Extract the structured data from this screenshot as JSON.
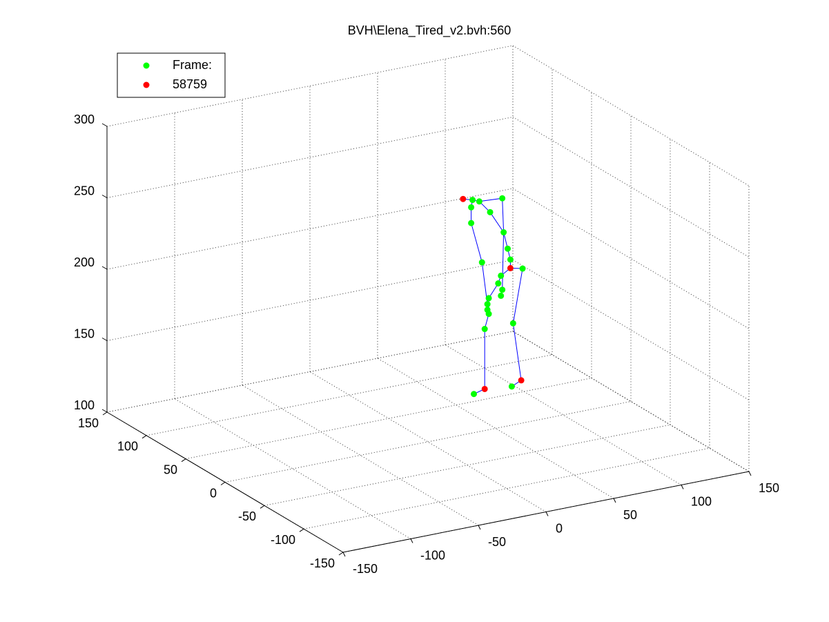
{
  "chart_data": {
    "type": "scatter3d",
    "title": "BVH\\Elena_Tired_v2.bvh:560",
    "xlim": [
      -150,
      150
    ],
    "ylim": [
      -150,
      150
    ],
    "zlim": [
      100,
      300
    ],
    "xticks": [
      -150,
      -100,
      -50,
      0,
      50,
      100,
      150
    ],
    "yticks": [
      -150,
      -100,
      -50,
      0,
      50,
      100,
      150
    ],
    "zticks": [
      100,
      150,
      200,
      250,
      300
    ],
    "grid": true,
    "legend": "upper-left",
    "series": [
      {
        "name": "Frame:",
        "color": "#00ff00",
        "style": "points",
        "x": [
          70,
          98,
          99,
          106,
          97,
          95,
          92,
          91,
          82,
          74,
          69,
          68,
          68,
          76,
          78,
          81,
          80,
          81,
          88,
          90,
          90,
          91,
          80
        ],
        "y": [
          62,
          62,
          62,
          62,
          62,
          62,
          62,
          62,
          62,
          62,
          62,
          62,
          62,
          62,
          62,
          62,
          62,
          62,
          62,
          62,
          62,
          62,
          62
        ],
        "z": [
          100,
          100,
          144,
          181,
          189,
          197,
          209,
          233,
          225,
          234,
          236,
          231,
          220,
          191,
          144,
          154,
          161,
          165,
          174,
          179,
          165,
          169,
          157
        ]
      },
      {
        "name": "58759",
        "color": "#ff0000",
        "style": "points",
        "x": [
          62,
          97,
          78,
          105
        ],
        "y": [
          62,
          62,
          62,
          62
        ],
        "z": [
          238,
          183,
          102,
          103
        ]
      },
      {
        "color": "#0000ff",
        "style": "line",
        "x": [
          70,
          78,
          78,
          81,
          81,
          88,
          90,
          97,
          97,
          95,
          92,
          91,
          74,
          69,
          62,
          null,
          69,
          68,
          68,
          76,
          80,
          null,
          74,
          82,
          92,
          91,
          null,
          97,
          106,
          99,
          105,
          98
        ],
        "y": [
          62,
          62,
          62,
          62,
          62,
          62,
          62,
          62,
          62,
          62,
          62,
          62,
          62,
          62,
          62,
          null,
          62,
          62,
          62,
          62,
          62,
          null,
          62,
          62,
          62,
          62,
          null,
          62,
          62,
          62,
          62,
          62
        ],
        "z": [
          100,
          102,
          144,
          154,
          165,
          174,
          179,
          183,
          189,
          197,
          209,
          233,
          234,
          236,
          238,
          null,
          236,
          231,
          220,
          191,
          161,
          null,
          234,
          225,
          209,
          169,
          null,
          183,
          181,
          144,
          103,
          100
        ]
      }
    ]
  }
}
